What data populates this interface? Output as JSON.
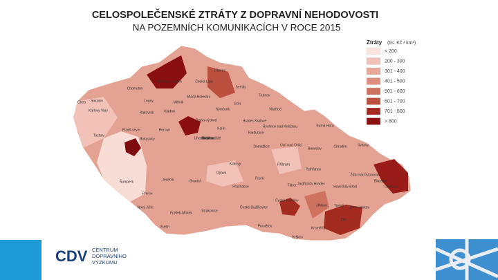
{
  "title": [
    "CELOSPOLEČENSKÉ ZTRÁTY Z DOPRAVNÍ NEHODOVOSTI",
    "NA POZEMNÍCH KOMUNIKACÍCH V ROCE 2015"
  ],
  "legend": {
    "title": "Ztráty",
    "unit": "(tis. Kč / km²)",
    "items": [
      {
        "label": "< 200",
        "color": "#fbe4e0"
      },
      {
        "label": "200 - 300",
        "color": "#f2c2b8"
      },
      {
        "label": "301 - 400",
        "color": "#e9a898"
      },
      {
        "label": "401 - 500",
        "color": "#de8f7d"
      },
      {
        "label": "501 - 600",
        "color": "#cf7260"
      },
      {
        "label": "601 - 700",
        "color": "#bb503e"
      },
      {
        "label": "701 - 800",
        "color": "#a32b20"
      },
      {
        "label": "> 800",
        "color": "#8a0f10"
      }
    ]
  },
  "districts": [
    "Cheb",
    "Sokolov",
    "Karlovy Vary",
    "Chomutov",
    "Louny",
    "Ústí nad Labem",
    "Česká Lípa",
    "Liberec",
    "Semily",
    "Trutnov",
    "Mělník",
    "Kladno",
    "Rakovník",
    "Mladá Boleslav",
    "Jičín",
    "Náchod",
    "Nymburk",
    "Hradec Králové",
    "Rychnov nad Kněžnou",
    "Tachov",
    "Plzeň-sever",
    "Rokycany",
    "Beroun",
    "Praha-východ",
    "Kolín",
    "Pardubice",
    "Ústí nad Orlicí",
    "Domažlice",
    "Příbram",
    "Benešov",
    "Kutná Hora",
    "Chrudim",
    "Svitavy",
    "Šumperk",
    "Jeseník",
    "Bruntál",
    "Opava",
    "Klatovy",
    "Písek",
    "Tábor",
    "Pelhřimov",
    "Havlíčkův Brod",
    "Žďár nad Sázavou",
    "Blansko",
    "Olomouc",
    "Přerov",
    "Nový Jičín",
    "Frýdek-Místek",
    "Vsetín",
    "Strakonice",
    "Prachatice",
    "České Budějovice",
    "Český Krumlov",
    "Jindřichův Hradec",
    "Jihlava",
    "Třebíč",
    "Brno-venkov",
    "Prostějov",
    "Vyškov",
    "Kroměříž",
    "Zlín",
    "Znojmo",
    "Břeclav",
    "Hodonín",
    "Uherské Hradiště"
  ],
  "logo": {
    "mark": "CDV",
    "text": [
      "CENTRUM",
      "DOPRAVNÍHO",
      "VÝZKUMU"
    ]
  }
}
